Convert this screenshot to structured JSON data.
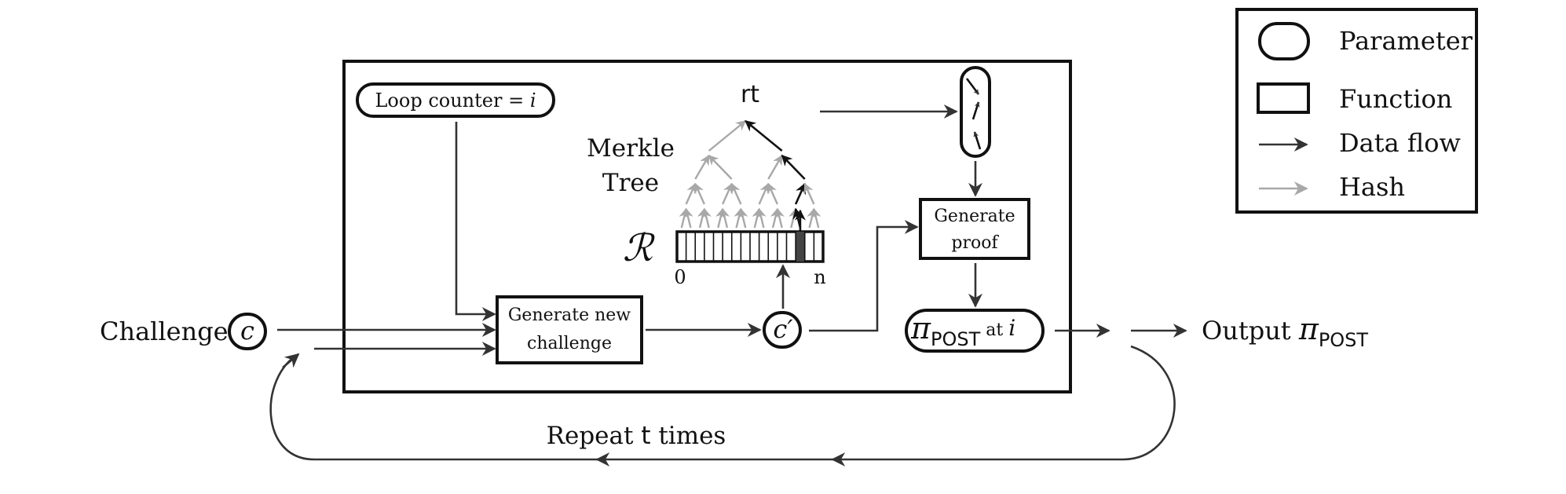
{
  "legend": {
    "items": [
      {
        "kind": "parameter",
        "label": "Parameter"
      },
      {
        "kind": "function",
        "label": "Function"
      },
      {
        "kind": "data-flow",
        "label": "Data flow"
      },
      {
        "kind": "hash",
        "label": "Hash"
      }
    ]
  },
  "main": {
    "loop_counter_label": "Loop counter = ",
    "loop_counter_var": "i",
    "merkle_label_line1": "Merkle",
    "merkle_label_line2": "Tree",
    "root_label": "rt",
    "record_symbol": "ℛ",
    "record_index_start": "0",
    "record_index_end": "n",
    "generate_challenge_line1": "Generate new",
    "generate_challenge_line2": "challenge",
    "new_challenge_symbol": "c′",
    "generate_proof_line1": "Generate",
    "generate_proof_line2": "proof",
    "proof_symbol": "π",
    "proof_subscript": "POST",
    "proof_at_text": " at ",
    "proof_at_var": "i"
  },
  "input": {
    "label": "Challenge",
    "symbol": "c"
  },
  "output": {
    "label": "Output ",
    "symbol": "π",
    "subscript": "POST"
  },
  "loop": {
    "label_prefix": "Repeat ",
    "label_var": "t",
    "label_suffix": " times"
  },
  "colors": {
    "stroke": "#111111",
    "flow": "#333333",
    "hash": "#a8a8a8",
    "selected_leaf": "#444444"
  }
}
